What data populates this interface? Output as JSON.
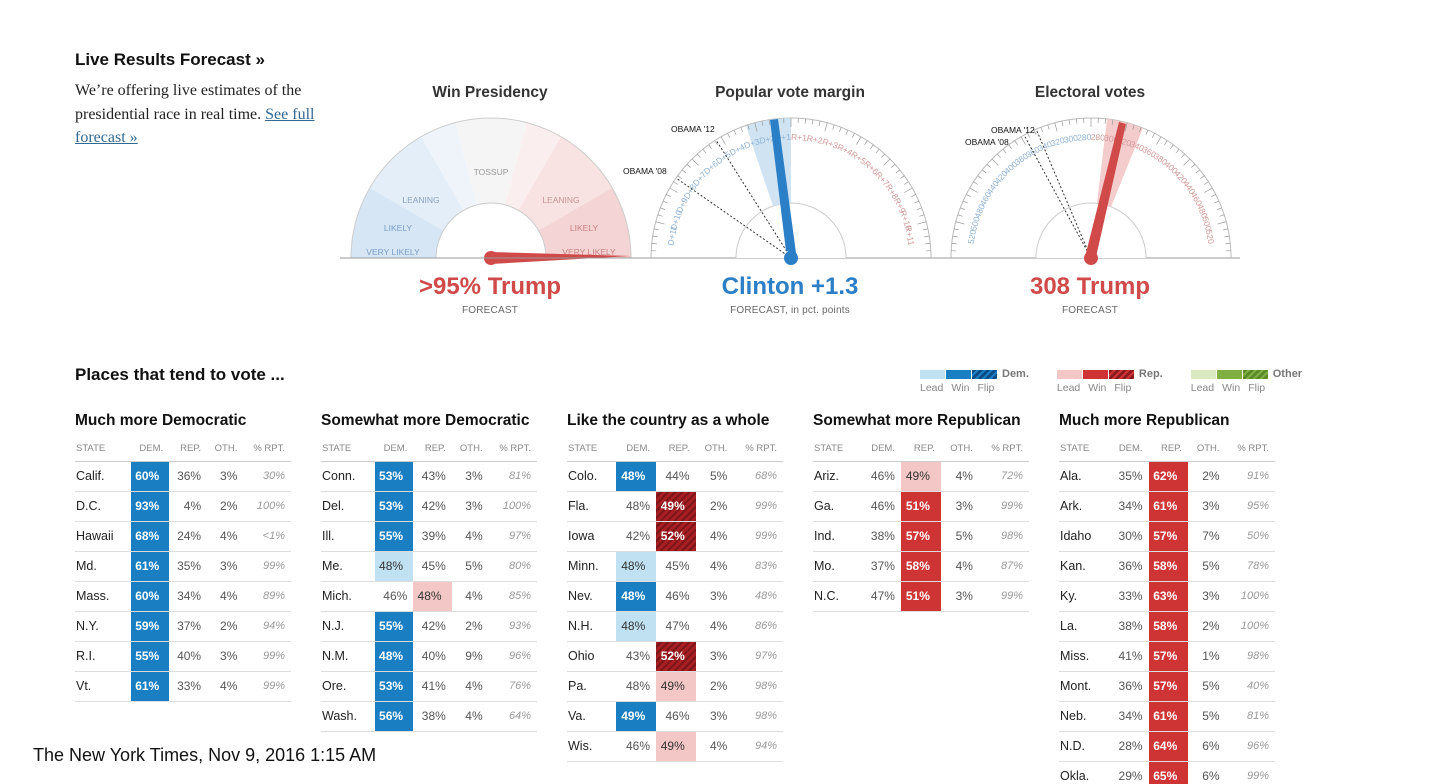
{
  "intro": {
    "title": "Live Results Forecast »",
    "text": "We’re offering live estimates of the presidential race in real time.",
    "link": "See full forecast »"
  },
  "gauges": [
    {
      "title": "Win Presidency",
      "value": ">95% Trump",
      "sub": "FORECAST",
      "color": "#d04a4a",
      "zones": [
        "VERY LIKELY",
        "LIKELY",
        "LEANING",
        "TOSSUP",
        "LEANING",
        "LIKELY",
        "VERY LIKELY"
      ]
    },
    {
      "title": "Popular vote margin",
      "value": "Clinton +1.3",
      "sub": "FORECAST, in pct. points",
      "color": "#2b7fc6",
      "marks": [
        "OBAMA '12",
        "OBAMA '08"
      ],
      "dem_ticks": [
        "D+1",
        "D+2",
        "D+3",
        "D+4",
        "D+5",
        "D+6",
        "D+7",
        "D+8",
        "D+9",
        "D+10",
        "D+11"
      ],
      "rep_ticks": [
        "R+1",
        "R+2",
        "R+3",
        "R+4",
        "R+5",
        "R+6",
        "R+7",
        "R+8",
        "R+9",
        "R+10",
        "R+11"
      ]
    },
    {
      "title": "Electoral votes",
      "value": "308 Trump",
      "sub": "FORECAST",
      "color": "#d04a4a",
      "marks": [
        "OBAMA '12",
        "OBAMA '08"
      ],
      "dem_ticks": [
        "280",
        "300",
        "320",
        "340",
        "360",
        "380",
        "400",
        "420",
        "440",
        "460",
        "480",
        "500",
        "520"
      ],
      "rep_ticks": [
        "280",
        "300",
        "320",
        "340",
        "360",
        "380",
        "400",
        "420",
        "440",
        "460",
        "480",
        "500",
        "520"
      ]
    }
  ],
  "section_title": "Places that tend to vote ...",
  "legend": {
    "groups": [
      {
        "label": "Dem.",
        "light": "#bfe1f2",
        "win": "#1a7ec2",
        "flip": "#0d4d86"
      },
      {
        "label": "Rep.",
        "light": "#f3c7c5",
        "win": "#cf3434",
        "flip": "#8b1a1e"
      },
      {
        "label": "Other",
        "light": "#dbe9c0",
        "win": "#7fae42",
        "flip": "#5b8a28"
      }
    ],
    "items": [
      "Lead",
      "Win",
      "Flip"
    ]
  },
  "headers": [
    "STATE",
    "DEM.",
    "REP.",
    "OTH.",
    "% RPT."
  ],
  "columns": [
    {
      "title": "Much more Democratic",
      "rows": [
        [
          "Calif.",
          "60%",
          "36%",
          "3%",
          "30%",
          "dw",
          ""
        ],
        [
          "D.C.",
          "93%",
          "4%",
          "2%",
          "100%",
          "dw",
          ""
        ],
        [
          "Hawaii",
          "68%",
          "24%",
          "4%",
          "<1%",
          "dw",
          ""
        ],
        [
          "Md.",
          "61%",
          "35%",
          "3%",
          "99%",
          "dw",
          ""
        ],
        [
          "Mass.",
          "60%",
          "34%",
          "4%",
          "89%",
          "dw",
          ""
        ],
        [
          "N.Y.",
          "59%",
          "37%",
          "2%",
          "94%",
          "dw",
          ""
        ],
        [
          "R.I.",
          "55%",
          "40%",
          "3%",
          "99%",
          "dw",
          ""
        ],
        [
          "Vt.",
          "61%",
          "33%",
          "4%",
          "99%",
          "dw",
          ""
        ]
      ]
    },
    {
      "title": "Somewhat more Democratic",
      "rows": [
        [
          "Conn.",
          "53%",
          "43%",
          "3%",
          "81%",
          "dw",
          ""
        ],
        [
          "Del.",
          "53%",
          "42%",
          "3%",
          "100%",
          "dw",
          ""
        ],
        [
          "Ill.",
          "55%",
          "39%",
          "4%",
          "97%",
          "dw",
          ""
        ],
        [
          "Me.",
          "48%",
          "45%",
          "5%",
          "80%",
          "dl",
          ""
        ],
        [
          "Mich.",
          "46%",
          "48%",
          "4%",
          "85%",
          "",
          "rl"
        ],
        [
          "N.J.",
          "55%",
          "42%",
          "2%",
          "93%",
          "dw",
          ""
        ],
        [
          "N.M.",
          "48%",
          "40%",
          "9%",
          "96%",
          "dw",
          ""
        ],
        [
          "Ore.",
          "53%",
          "41%",
          "4%",
          "76%",
          "dw",
          ""
        ],
        [
          "Wash.",
          "56%",
          "38%",
          "4%",
          "64%",
          "dw",
          ""
        ]
      ]
    },
    {
      "title": "Like the country as a whole",
      "rows": [
        [
          "Colo.",
          "48%",
          "44%",
          "5%",
          "68%",
          "dw",
          ""
        ],
        [
          "Fla.",
          "48%",
          "49%",
          "2%",
          "99%",
          "",
          "rf"
        ],
        [
          "Iowa",
          "42%",
          "52%",
          "4%",
          "99%",
          "",
          "rf"
        ],
        [
          "Minn.",
          "48%",
          "45%",
          "4%",
          "83%",
          "dl",
          ""
        ],
        [
          "Nev.",
          "48%",
          "46%",
          "3%",
          "48%",
          "dw",
          ""
        ],
        [
          "N.H.",
          "48%",
          "47%",
          "4%",
          "86%",
          "dl",
          ""
        ],
        [
          "Ohio",
          "43%",
          "52%",
          "3%",
          "97%",
          "",
          "rf"
        ],
        [
          "Pa.",
          "48%",
          "49%",
          "2%",
          "98%",
          "",
          "rl"
        ],
        [
          "Va.",
          "49%",
          "46%",
          "3%",
          "98%",
          "dw",
          ""
        ],
        [
          "Wis.",
          "46%",
          "49%",
          "4%",
          "94%",
          "",
          "rl"
        ]
      ]
    },
    {
      "title": "Somewhat more Republican",
      "rows": [
        [
          "Ariz.",
          "46%",
          "49%",
          "4%",
          "72%",
          "",
          "rl"
        ],
        [
          "Ga.",
          "46%",
          "51%",
          "3%",
          "99%",
          "",
          "rw"
        ],
        [
          "Ind.",
          "38%",
          "57%",
          "5%",
          "98%",
          "",
          "rw"
        ],
        [
          "Mo.",
          "37%",
          "58%",
          "4%",
          "87%",
          "",
          "rw"
        ],
        [
          "N.C.",
          "47%",
          "51%",
          "3%",
          "99%",
          "",
          "rw"
        ]
      ]
    },
    {
      "title": "Much more Republican",
      "rows": [
        [
          "Ala.",
          "35%",
          "62%",
          "2%",
          "91%",
          "",
          "rw"
        ],
        [
          "Ark.",
          "34%",
          "61%",
          "3%",
          "95%",
          "",
          "rw"
        ],
        [
          "Idaho",
          "30%",
          "57%",
          "7%",
          "50%",
          "",
          "rw"
        ],
        [
          "Kan.",
          "36%",
          "58%",
          "5%",
          "78%",
          "",
          "rw"
        ],
        [
          "Ky.",
          "33%",
          "63%",
          "3%",
          "100%",
          "",
          "rw"
        ],
        [
          "La.",
          "38%",
          "58%",
          "2%",
          "100%",
          "",
          "rw"
        ],
        [
          "Miss.",
          "41%",
          "57%",
          "1%",
          "98%",
          "",
          "rw"
        ],
        [
          "Mont.",
          "36%",
          "57%",
          "5%",
          "40%",
          "",
          "rw"
        ],
        [
          "Neb.",
          "34%",
          "61%",
          "5%",
          "81%",
          "",
          "rw"
        ],
        [
          "N.D.",
          "28%",
          "64%",
          "6%",
          "96%",
          "",
          "rw"
        ],
        [
          "Okla.",
          "29%",
          "65%",
          "6%",
          "99%",
          "",
          "rw"
        ]
      ]
    }
  ],
  "footer": {
    "timestamp": "The New York Times, Nov 9, 2016  1:15 AM"
  }
}
